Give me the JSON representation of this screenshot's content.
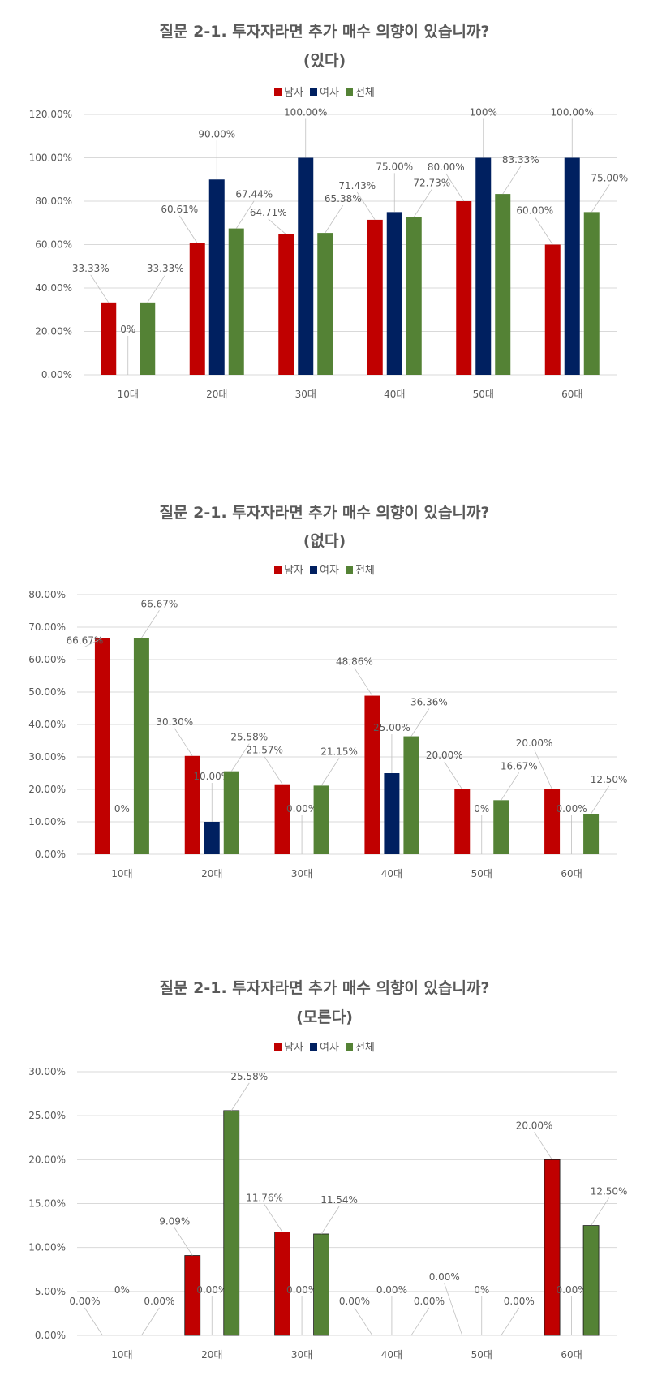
{
  "colors": {
    "남자": "#C00000",
    "여자": "#002060",
    "전체": "#548235"
  },
  "chart_data": [
    {
      "type": "bar",
      "title": "질문 2-1. 투자자라면 추가 매수 의향이 있습니까?",
      "subtitle": "(있다)",
      "categories": [
        "10대",
        "20대",
        "30대",
        "40대",
        "50대",
        "60대"
      ],
      "ylim": [
        0,
        1.2
      ],
      "yticks": [
        "0.00%",
        "20.00%",
        "40.00%",
        "60.00%",
        "80.00%",
        "100.00%",
        "120.00%"
      ],
      "grid": true,
      "legend": "top",
      "series": [
        {
          "name": "남자",
          "values": [
            0.3333,
            0.6061,
            0.6471,
            0.7143,
            0.8,
            0.6
          ],
          "labels": [
            "33.33%",
            "60.61%",
            "64.71%",
            "71.43%",
            "80.00%",
            "60.00%"
          ]
        },
        {
          "name": "여자",
          "values": [
            0,
            0.9,
            1.0,
            0.75,
            1.0,
            1.0
          ],
          "labels": [
            "0%",
            "90.00%",
            "100.00%",
            "75.00%",
            "100%",
            "100.00%"
          ]
        },
        {
          "name": "전체",
          "values": [
            0.3333,
            0.6744,
            0.6538,
            0.7273,
            0.8333,
            0.75
          ],
          "labels": [
            "33.33%",
            "67.44%",
            "65.38%",
            "72.73%",
            "83.33%",
            "75.00%"
          ]
        }
      ]
    },
    {
      "type": "bar",
      "title": "질문 2-1. 투자자라면 추가 매수 의향이 있습니까?",
      "subtitle": "(없다)",
      "categories": [
        "10대",
        "20대",
        "30대",
        "40대",
        "50대",
        "60대"
      ],
      "ylim": [
        0,
        0.8
      ],
      "yticks": [
        "0.00%",
        "10.00%",
        "20.00%",
        "30.00%",
        "40.00%",
        "50.00%",
        "60.00%",
        "70.00%",
        "80.00%"
      ],
      "grid": true,
      "legend": "top",
      "series": [
        {
          "name": "남자",
          "values": [
            0.6667,
            0.303,
            0.2157,
            0.4886,
            0.2,
            0.2
          ],
          "labels": [
            "66.67%",
            "30.30%",
            "21.57%",
            "48.86%",
            "20.00%",
            "20.00%"
          ]
        },
        {
          "name": "여자",
          "values": [
            0,
            0.1,
            0,
            0.25,
            0,
            0
          ],
          "labels": [
            "0%",
            "10.00%",
            "0.00%",
            "25.00%",
            "0%",
            "0.00%"
          ]
        },
        {
          "name": "전체",
          "values": [
            0.6667,
            0.2558,
            0.2115,
            0.3636,
            0.1667,
            0.125
          ],
          "labels": [
            "66.67%",
            "25.58%",
            "21.15%",
            "36.36%",
            "16.67%",
            "12.50%"
          ]
        }
      ]
    },
    {
      "type": "bar",
      "title": "질문 2-1. 투자자라면 추가 매수 의향이 있습니까?",
      "subtitle": "(모른다)",
      "categories": [
        "10대",
        "20대",
        "30대",
        "40대",
        "50대",
        "60대"
      ],
      "ylim": [
        0,
        0.3
      ],
      "yticks": [
        "0.00%",
        "5.00%",
        "10.00%",
        "15.00%",
        "20.00%",
        "25.00%",
        "30.00%"
      ],
      "grid": true,
      "legend": "top",
      "series": [
        {
          "name": "남자",
          "values": [
            0,
            0.0909,
            0.1176,
            0,
            0,
            0.2
          ],
          "labels": [
            "0.00%",
            "9.09%",
            "11.76%",
            "0.00%",
            "0.00%",
            "20.00%"
          ]
        },
        {
          "name": "여자",
          "values": [
            0,
            0,
            0,
            0,
            0,
            0
          ],
          "labels": [
            "0%",
            "0.00%",
            "0.00%",
            "0.00%",
            "0%",
            "0.00%"
          ]
        },
        {
          "name": "전체",
          "values": [
            0,
            0.2558,
            0.1154,
            0,
            0,
            0.125
          ],
          "labels": [
            "0.00%",
            "25.58%",
            "11.54%",
            "0.00%",
            "0.00%",
            "12.50%"
          ]
        }
      ]
    }
  ]
}
